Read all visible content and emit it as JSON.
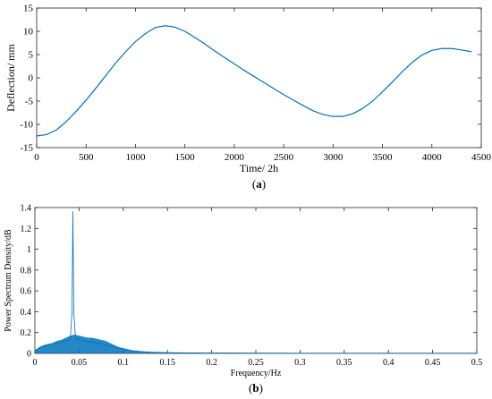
{
  "chart_data": [
    {
      "type": "line",
      "panel_label": "(a)",
      "xlabel": "Time/ 2h",
      "ylabel": "Deflection/ mm",
      "xlim": [
        0,
        4500
      ],
      "ylim": [
        -15,
        15
      ],
      "x_ticks": [
        "0",
        "500",
        "1000",
        "1500",
        "2000",
        "2500",
        "3000",
        "3500",
        "4000",
        "4500"
      ],
      "y_ticks": [
        "-15",
        "-10",
        "-5",
        "0",
        "5",
        "10",
        "15"
      ],
      "line_color": "#0072bd",
      "series": [
        {
          "x": [
            0,
            100,
            200,
            300,
            400,
            500,
            600,
            700,
            800,
            900,
            1000,
            1100,
            1200,
            1300,
            1400,
            1500,
            1600,
            1700,
            1800,
            1900,
            2000,
            2100,
            2200,
            2300,
            2400,
            2500,
            2600,
            2700,
            2800,
            2900,
            3000,
            3100,
            3200,
            3300,
            3400,
            3500,
            3600,
            3700,
            3800,
            3900,
            4000,
            4100,
            4200,
            4300,
            4400
          ],
          "y": [
            -12.5,
            -12.2,
            -11.2,
            -9.4,
            -7.2,
            -4.8,
            -2.2,
            0.5,
            3.2,
            5.6,
            7.8,
            9.5,
            10.8,
            11.2,
            10.9,
            10.0,
            8.7,
            7.3,
            5.8,
            4.4,
            3.0,
            1.6,
            0.3,
            -1.0,
            -2.3,
            -3.6,
            -4.8,
            -6.0,
            -7.1,
            -7.9,
            -8.3,
            -8.3,
            -7.7,
            -6.6,
            -5.0,
            -3.0,
            -0.9,
            1.3,
            3.3,
            4.9,
            5.9,
            6.3,
            6.3,
            6.0,
            5.6
          ]
        }
      ]
    },
    {
      "type": "line",
      "panel_label": "(b)",
      "xlabel": "Frequency/Hz",
      "ylabel": "Power Spectrum Density/dB",
      "xlim": [
        0,
        0.5
      ],
      "ylim": [
        0,
        1.4
      ],
      "x_ticks": [
        "0",
        "0.05",
        "0.1",
        "0.15",
        "0.2",
        "0.25",
        "0.3",
        "0.35",
        "0.4",
        "0.45",
        "0.5"
      ],
      "y_ticks": [
        "0",
        "0.2",
        "0.4",
        "0.6",
        "0.8",
        "1",
        "1.2",
        "1.4"
      ],
      "line_color": "#0072bd",
      "series": [
        {
          "x": [
            0,
            0.005,
            0.01,
            0.015,
            0.02,
            0.025,
            0.03,
            0.035,
            0.04,
            0.042,
            0.043,
            0.044,
            0.046,
            0.05,
            0.055,
            0.06,
            0.065,
            0.07,
            0.075,
            0.08,
            0.085,
            0.09,
            0.095,
            0.1,
            0.11,
            0.12,
            0.13,
            0.14,
            0.15,
            0.17,
            0.2,
            0.25,
            0.3,
            0.35,
            0.4,
            0.45,
            0.5
          ],
          "y": [
            0.02,
            0.05,
            0.07,
            0.08,
            0.09,
            0.1,
            0.11,
            0.12,
            0.13,
            0.4,
            1.36,
            0.4,
            0.14,
            0.13,
            0.12,
            0.11,
            0.11,
            0.1,
            0.09,
            0.08,
            0.07,
            0.06,
            0.05,
            0.04,
            0.025,
            0.018,
            0.012,
            0.009,
            0.007,
            0.005,
            0.004,
            0.003,
            0.002,
            0.002,
            0.002,
            0.002,
            0.002
          ]
        }
      ],
      "envelope": {
        "x": [
          0,
          0.005,
          0.01,
          0.015,
          0.02,
          0.025,
          0.03,
          0.035,
          0.04,
          0.045,
          0.05,
          0.055,
          0.06,
          0.065,
          0.07,
          0.075,
          0.08,
          0.085,
          0.09,
          0.095,
          0.1,
          0.11,
          0.12,
          0.13,
          0.14,
          0.15,
          0.17,
          0.2,
          0.25,
          0.5
        ],
        "y": [
          0.03,
          0.06,
          0.08,
          0.09,
          0.1,
          0.12,
          0.13,
          0.15,
          0.17,
          0.18,
          0.17,
          0.16,
          0.15,
          0.15,
          0.14,
          0.13,
          0.12,
          0.1,
          0.08,
          0.06,
          0.05,
          0.03,
          0.02,
          0.015,
          0.01,
          0.008,
          0.006,
          0.004,
          0.003,
          0.002
        ]
      }
    }
  ]
}
